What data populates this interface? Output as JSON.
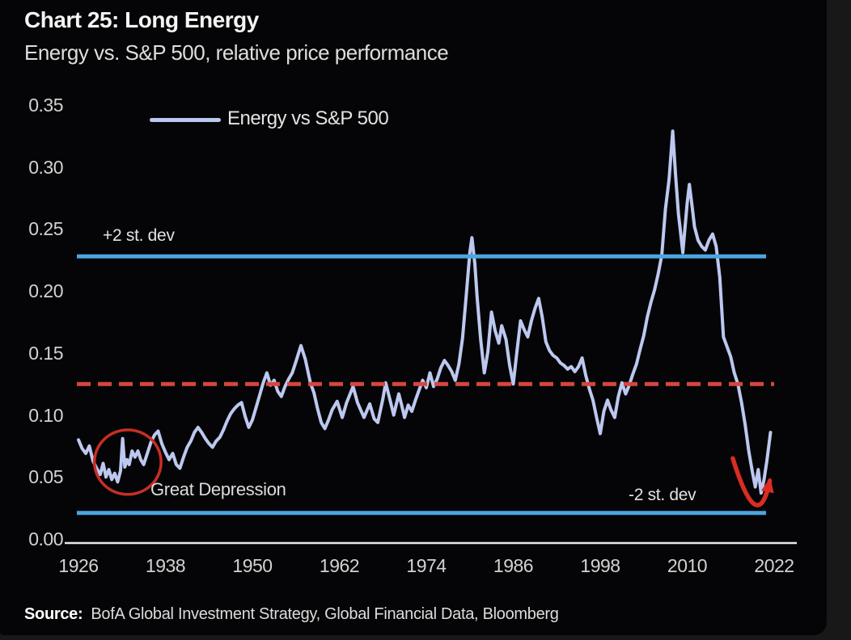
{
  "page": {
    "background": "#181818",
    "card_background": "#050507"
  },
  "header": {
    "title": "Chart 25: Long Energy",
    "subtitle": "Energy vs. S&P 500, relative price performance"
  },
  "footer": {
    "source_label": "Source:",
    "source_text": "BofA Global Investment Strategy, Global Financial Data, Bloomberg"
  },
  "chart_data": {
    "type": "line",
    "title": "Chart 25: Long Energy",
    "subtitle": "Energy vs. S&P 500, relative price performance",
    "legend": {
      "label": "Energy vs S&P 500",
      "color": "#bcc8ef",
      "position": "top-left-inside"
    },
    "grid": false,
    "x_axis": {
      "min": 1926,
      "max": 2022,
      "ticks": [
        1926,
        1938,
        1950,
        1962,
        1974,
        1986,
        1998,
        2010,
        2022
      ]
    },
    "y_axis": {
      "min": 0.0,
      "max": 0.35,
      "tick_labels": [
        "0.35",
        "0.30",
        "0.25",
        "0.20",
        "0.15",
        "0.10",
        "0.05",
        "0.00"
      ],
      "tick_values": [
        0.35,
        0.3,
        0.25,
        0.2,
        0.15,
        0.1,
        0.05,
        0.0
      ]
    },
    "reference_lines": [
      {
        "id": "plus2",
        "label": "+2 st. dev",
        "value": 0.228,
        "style": "solid",
        "color": "#4aa6e0"
      },
      {
        "id": "minus2",
        "label": "-2 st. dev",
        "value": 0.021,
        "style": "solid",
        "color": "#4aa6e0"
      },
      {
        "id": "mean",
        "label": "",
        "value": 0.125,
        "style": "dashed",
        "color": "#d5463f"
      }
    ],
    "annotations": [
      {
        "type": "ellipse",
        "label": "Great Depression",
        "center_year": 1932.8,
        "center_value": 0.062,
        "radius_years": 4.6,
        "radius_value": 0.026,
        "color": "#c92e25"
      },
      {
        "type": "arrow",
        "color": "#d92c23",
        "start": [
          2016.3,
          0.065
        ],
        "dip": [
          2019.3,
          0.028
        ],
        "end": [
          2021.4,
          0.047
        ]
      }
    ],
    "series": [
      {
        "name": "Energy vs S&P 500",
        "color": "#bcc8ef",
        "points": [
          [
            1926,
            0.08
          ],
          [
            1926.5,
            0.073
          ],
          [
            1927,
            0.069
          ],
          [
            1927.5,
            0.075
          ],
          [
            1928,
            0.063
          ],
          [
            1928.5,
            0.057
          ],
          [
            1929,
            0.052
          ],
          [
            1929.4,
            0.061
          ],
          [
            1929.8,
            0.05
          ],
          [
            1930.2,
            0.056
          ],
          [
            1930.6,
            0.048
          ],
          [
            1931,
            0.053
          ],
          [
            1931.4,
            0.046
          ],
          [
            1931.8,
            0.055
          ],
          [
            1932.1,
            0.081
          ],
          [
            1932.4,
            0.058
          ],
          [
            1932.7,
            0.064
          ],
          [
            1933,
            0.06
          ],
          [
            1933.4,
            0.071
          ],
          [
            1933.8,
            0.066
          ],
          [
            1934.2,
            0.071
          ],
          [
            1934.6,
            0.064
          ],
          [
            1935,
            0.06
          ],
          [
            1935.5,
            0.069
          ],
          [
            1936,
            0.078
          ],
          [
            1936.5,
            0.084
          ],
          [
            1937,
            0.087
          ],
          [
            1937.5,
            0.077
          ],
          [
            1938,
            0.07
          ],
          [
            1938.5,
            0.064
          ],
          [
            1939,
            0.069
          ],
          [
            1939.5,
            0.06
          ],
          [
            1940,
            0.057
          ],
          [
            1940.5,
            0.066
          ],
          [
            1941,
            0.074
          ],
          [
            1941.5,
            0.079
          ],
          [
            1942,
            0.086
          ],
          [
            1942.5,
            0.09
          ],
          [
            1943,
            0.086
          ],
          [
            1943.5,
            0.081
          ],
          [
            1944,
            0.077
          ],
          [
            1944.5,
            0.074
          ],
          [
            1945,
            0.079
          ],
          [
            1945.5,
            0.082
          ],
          [
            1946,
            0.088
          ],
          [
            1946.5,
            0.095
          ],
          [
            1947,
            0.101
          ],
          [
            1947.5,
            0.105
          ],
          [
            1948,
            0.108
          ],
          [
            1948.5,
            0.11
          ],
          [
            1949,
            0.099
          ],
          [
            1949.5,
            0.09
          ],
          [
            1950,
            0.096
          ],
          [
            1950.5,
            0.106
          ],
          [
            1951,
            0.116
          ],
          [
            1951.5,
            0.126
          ],
          [
            1952,
            0.134
          ],
          [
            1952.5,
            0.124
          ],
          [
            1953,
            0.128
          ],
          [
            1953.5,
            0.119
          ],
          [
            1954,
            0.115
          ],
          [
            1954.5,
            0.123
          ],
          [
            1955,
            0.129
          ],
          [
            1955.5,
            0.134
          ],
          [
            1956,
            0.143
          ],
          [
            1956.7,
            0.156
          ],
          [
            1957.3,
            0.145
          ],
          [
            1958,
            0.126
          ],
          [
            1958.5,
            0.118
          ],
          [
            1959,
            0.105
          ],
          [
            1959.5,
            0.094
          ],
          [
            1960,
            0.089
          ],
          [
            1960.5,
            0.096
          ],
          [
            1961,
            0.104
          ],
          [
            1961.7,
            0.111
          ],
          [
            1962.4,
            0.098
          ],
          [
            1963,
            0.11
          ],
          [
            1963.9,
            0.123
          ],
          [
            1964.5,
            0.11
          ],
          [
            1965.4,
            0.098
          ],
          [
            1966.2,
            0.109
          ],
          [
            1966.8,
            0.097
          ],
          [
            1967.3,
            0.094
          ],
          [
            1968,
            0.113
          ],
          [
            1968.4,
            0.126
          ],
          [
            1969,
            0.112
          ],
          [
            1969.5,
            0.1
          ],
          [
            1970.2,
            0.117
          ],
          [
            1970.6,
            0.108
          ],
          [
            1971,
            0.098
          ],
          [
            1971.5,
            0.108
          ],
          [
            1972,
            0.103
          ],
          [
            1972.5,
            0.112
          ],
          [
            1973,
            0.12
          ],
          [
            1973.5,
            0.128
          ],
          [
            1974,
            0.122
          ],
          [
            1974.5,
            0.134
          ],
          [
            1975,
            0.123
          ],
          [
            1975.5,
            0.129
          ],
          [
            1976,
            0.138
          ],
          [
            1976.5,
            0.144
          ],
          [
            1977,
            0.14
          ],
          [
            1977.5,
            0.135
          ],
          [
            1978,
            0.128
          ],
          [
            1978.5,
            0.141
          ],
          [
            1979,
            0.162
          ],
          [
            1979.5,
            0.196
          ],
          [
            1980,
            0.231
          ],
          [
            1980.3,
            0.243
          ],
          [
            1980.7,
            0.222
          ],
          [
            1981,
            0.196
          ],
          [
            1981.5,
            0.161
          ],
          [
            1982,
            0.134
          ],
          [
            1982.5,
            0.151
          ],
          [
            1983,
            0.183
          ],
          [
            1983.5,
            0.168
          ],
          [
            1984,
            0.158
          ],
          [
            1984.4,
            0.172
          ],
          [
            1985,
            0.161
          ],
          [
            1985.5,
            0.14
          ],
          [
            1986,
            0.125
          ],
          [
            1986.5,
            0.151
          ],
          [
            1987,
            0.176
          ],
          [
            1987.5,
            0.169
          ],
          [
            1988,
            0.163
          ],
          [
            1988.5,
            0.176
          ],
          [
            1989,
            0.186
          ],
          [
            1989.5,
            0.194
          ],
          [
            1990,
            0.179
          ],
          [
            1990.5,
            0.159
          ],
          [
            1991,
            0.152
          ],
          [
            1991.5,
            0.148
          ],
          [
            1992,
            0.146
          ],
          [
            1992.5,
            0.142
          ],
          [
            1993,
            0.14
          ],
          [
            1993.5,
            0.137
          ],
          [
            1994,
            0.139
          ],
          [
            1994.5,
            0.135
          ],
          [
            1995,
            0.139
          ],
          [
            1995.5,
            0.146
          ],
          [
            1996,
            0.132
          ],
          [
            1996.5,
            0.121
          ],
          [
            1997,
            0.112
          ],
          [
            1997.5,
            0.098
          ],
          [
            1998,
            0.085
          ],
          [
            1998.5,
            0.103
          ],
          [
            1999,
            0.112
          ],
          [
            1999.5,
            0.104
          ],
          [
            2000,
            0.098
          ],
          [
            2000.5,
            0.115
          ],
          [
            2001,
            0.126
          ],
          [
            2001.5,
            0.117
          ],
          [
            2002,
            0.124
          ],
          [
            2002.5,
            0.133
          ],
          [
            2003,
            0.141
          ],
          [
            2003.5,
            0.153
          ],
          [
            2004,
            0.164
          ],
          [
            2004.5,
            0.179
          ],
          [
            2005,
            0.191
          ],
          [
            2005.5,
            0.201
          ],
          [
            2006,
            0.214
          ],
          [
            2006.5,
            0.229
          ],
          [
            2007,
            0.266
          ],
          [
            2007.5,
            0.29
          ],
          [
            2008,
            0.329
          ],
          [
            2008.4,
            0.293
          ],
          [
            2008.8,
            0.262
          ],
          [
            2009,
            0.252
          ],
          [
            2009.4,
            0.231
          ],
          [
            2010,
            0.271
          ],
          [
            2010.3,
            0.286
          ],
          [
            2010.7,
            0.267
          ],
          [
            2011,
            0.252
          ],
          [
            2011.5,
            0.241
          ],
          [
            2012,
            0.236
          ],
          [
            2012.5,
            0.233
          ],
          [
            2013,
            0.241
          ],
          [
            2013.5,
            0.246
          ],
          [
            2014,
            0.236
          ],
          [
            2014.5,
            0.211
          ],
          [
            2015,
            0.163
          ],
          [
            2015.5,
            0.155
          ],
          [
            2016,
            0.147
          ],
          [
            2016.5,
            0.134
          ],
          [
            2017,
            0.125
          ],
          [
            2017.5,
            0.11
          ],
          [
            2018,
            0.092
          ],
          [
            2018.5,
            0.071
          ],
          [
            2019,
            0.054
          ],
          [
            2019.4,
            0.042
          ],
          [
            2019.8,
            0.056
          ],
          [
            2020.2,
            0.037
          ],
          [
            2020.6,
            0.048
          ],
          [
            2021,
            0.063
          ],
          [
            2021.5,
            0.086
          ]
        ]
      }
    ]
  }
}
